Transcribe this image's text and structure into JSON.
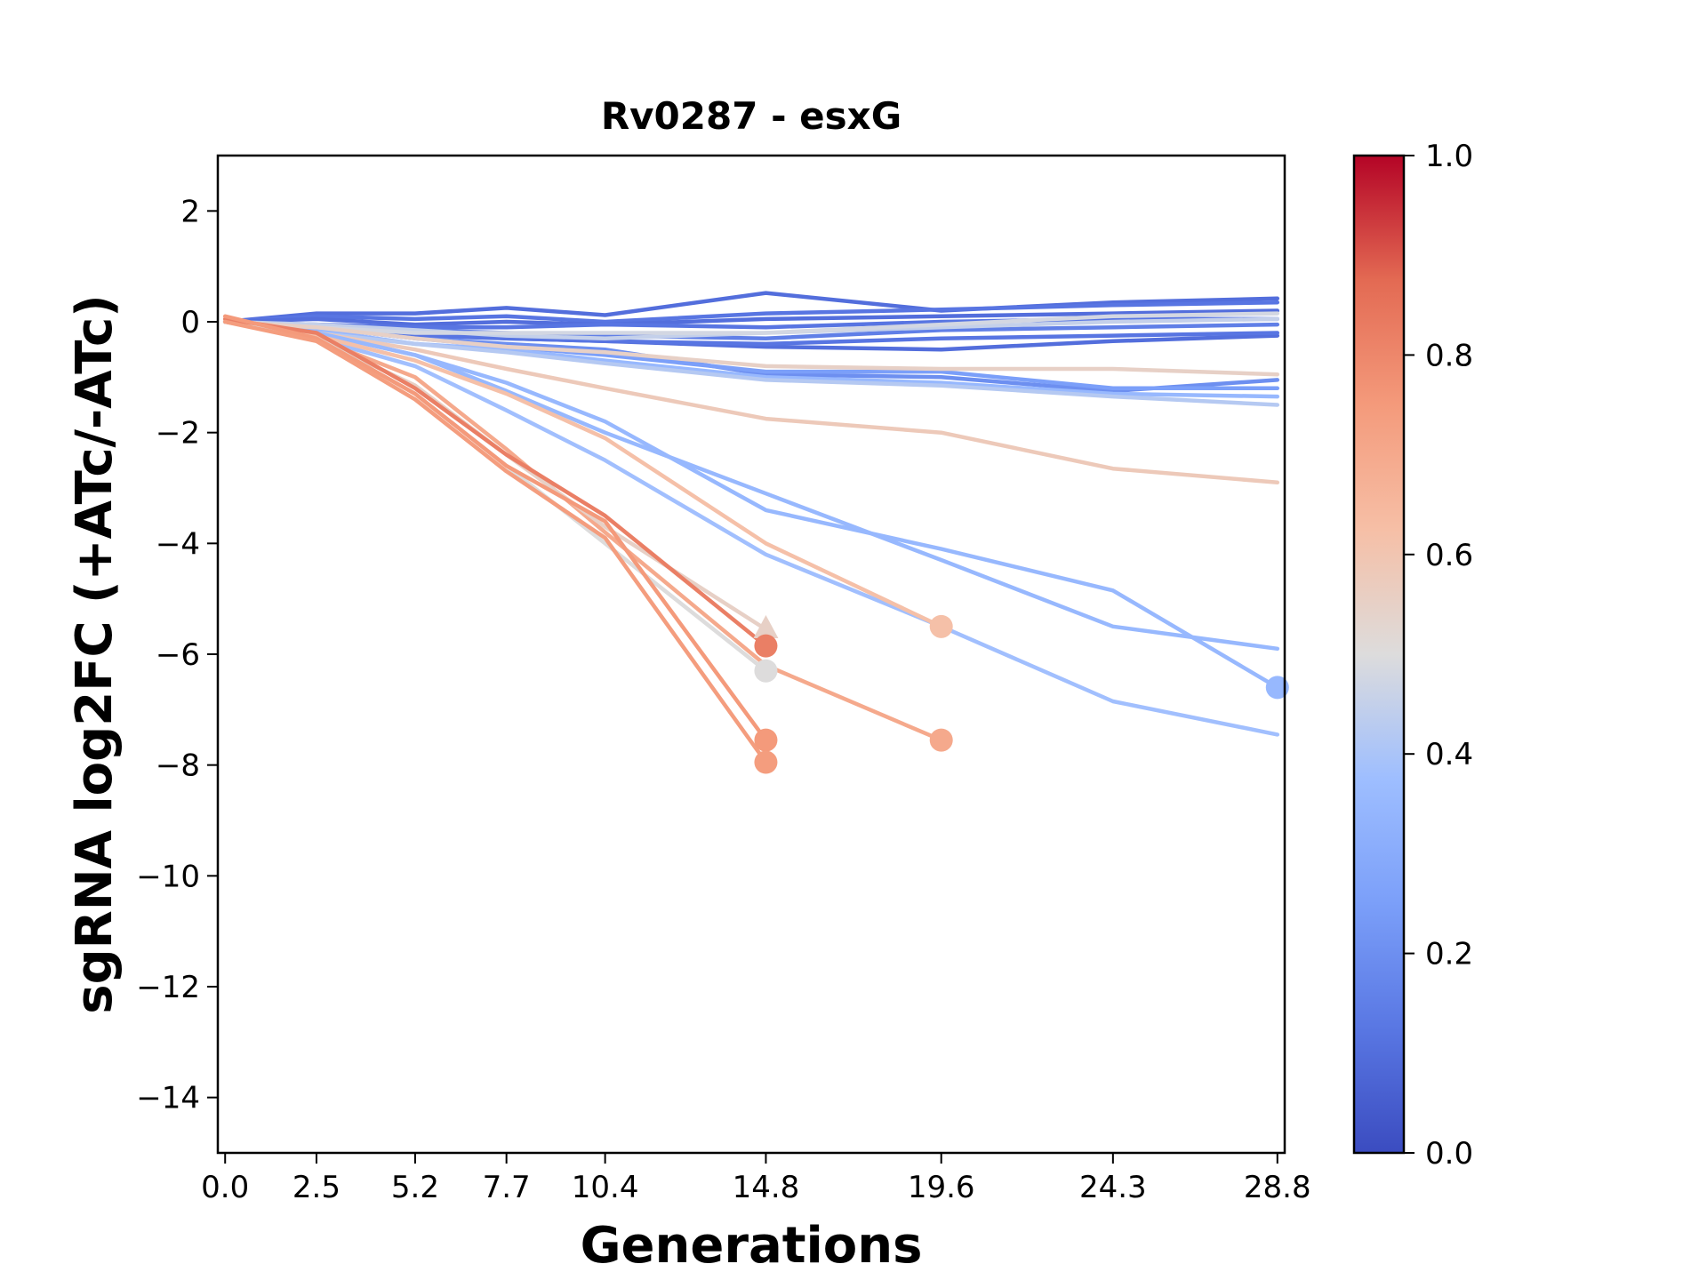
{
  "chart_data": {
    "type": "line",
    "title": "Rv0287 - esxG",
    "xlabel": "Generations",
    "ylabel": "sgRNA log2FC (+ATc/-ATc)",
    "xlim": [
      -0.2,
      29.0
    ],
    "ylim": [
      -15,
      3
    ],
    "x_ticks": [
      "0.0",
      "2.5",
      "5.2",
      "7.7",
      "10.4",
      "14.8",
      "19.6",
      "24.3",
      "28.8"
    ],
    "y_ticks": [
      "2",
      "0",
      "−2",
      "−4",
      "−6",
      "−8",
      "−10",
      "−12",
      "−14"
    ],
    "colorbar": {
      "colormap": "coolwarm",
      "range": [
        0.0,
        1.0
      ],
      "ticks": [
        "0.0",
        "0.2",
        "0.4",
        "0.6",
        "0.8",
        "1.0"
      ]
    },
    "series": [
      {
        "color_value": 0.1,
        "x": [
          0,
          2.5,
          5.2,
          7.7,
          10.4,
          14.8,
          19.6,
          24.3,
          28.8
        ],
        "y": [
          0,
          0.15,
          0.15,
          0.25,
          0.12,
          0.52,
          0.2,
          0.35,
          0.42
        ]
      },
      {
        "color_value": 0.12,
        "x": [
          0,
          2.5,
          5.2,
          7.7,
          10.4,
          14.8,
          19.6,
          24.3,
          28.8
        ],
        "y": [
          0,
          0.1,
          0.05,
          0.1,
          0.0,
          0.15,
          0.22,
          0.3,
          0.35
        ]
      },
      {
        "color_value": 0.1,
        "x": [
          0,
          2.5,
          5.2,
          7.7,
          10.4,
          14.8,
          19.6,
          24.3,
          28.8
        ],
        "y": [
          0,
          0.05,
          -0.05,
          0.0,
          -0.05,
          0.05,
          0.1,
          0.15,
          0.2
        ]
      },
      {
        "color_value": 0.12,
        "x": [
          0,
          2.5,
          5.2,
          7.7,
          10.4,
          14.8,
          19.6,
          24.3,
          28.8
        ],
        "y": [
          0,
          -0.05,
          -0.1,
          -0.1,
          -0.05,
          -0.1,
          0.0,
          0.05,
          0.05
        ]
      },
      {
        "color_value": 0.15,
        "x": [
          0,
          2.5,
          5.2,
          7.7,
          10.4,
          14.8,
          19.6,
          24.3,
          28.8
        ],
        "y": [
          0,
          -0.1,
          -0.15,
          -0.2,
          -0.25,
          -0.3,
          -0.15,
          -0.1,
          -0.05
        ]
      },
      {
        "color_value": 0.1,
        "x": [
          0,
          2.5,
          5.2,
          7.7,
          10.4,
          14.8,
          19.6,
          24.3,
          28.8
        ],
        "y": [
          0,
          -0.15,
          -0.2,
          -0.3,
          -0.35,
          -0.45,
          -0.5,
          -0.35,
          -0.25
        ]
      },
      {
        "color_value": 0.12,
        "x": [
          0,
          2.5,
          5.2,
          7.7,
          10.4,
          14.8,
          19.6,
          24.3,
          28.8
        ],
        "y": [
          0,
          -0.1,
          -0.25,
          -0.3,
          -0.35,
          -0.4,
          -0.3,
          -0.25,
          -0.2
        ]
      },
      {
        "color_value": 0.2,
        "x": [
          0,
          2.5,
          5.2,
          7.7,
          10.4,
          14.8,
          19.6,
          24.3,
          28.8
        ],
        "y": [
          0,
          -0.1,
          -0.3,
          -0.4,
          -0.5,
          -0.95,
          -1.0,
          -1.25,
          -1.05
        ]
      },
      {
        "color_value": 0.25,
        "x": [
          0,
          2.5,
          5.2,
          7.7,
          10.4,
          14.8,
          19.6,
          24.3,
          28.8
        ],
        "y": [
          0,
          -0.1,
          -0.3,
          -0.45,
          -0.6,
          -0.9,
          -0.9,
          -1.2,
          -1.2
        ]
      },
      {
        "color_value": 0.35,
        "x": [
          0,
          2.5,
          5.2,
          7.7,
          10.4,
          14.8,
          19.6,
          24.3,
          28.8
        ],
        "y": [
          0,
          -0.15,
          -0.4,
          -0.5,
          -0.7,
          -1.0,
          -1.1,
          -1.3,
          -1.35
        ]
      },
      {
        "color_value": 0.42,
        "x": [
          0,
          2.5,
          5.2,
          7.7,
          10.4,
          14.8,
          19.6,
          24.3,
          28.8
        ],
        "y": [
          0,
          -0.2,
          -0.4,
          -0.55,
          -0.75,
          -1.05,
          -1.15,
          -1.35,
          -1.5
        ]
      },
      {
        "color_value": 0.45,
        "x": [
          0,
          2.5,
          5.2,
          7.7,
          10.4,
          14.8,
          19.6,
          24.3,
          28.8
        ],
        "y": [
          0,
          -0.05,
          -0.15,
          -0.25,
          -0.3,
          -0.2,
          -0.1,
          0.0,
          0.05
        ]
      },
      {
        "color_value": 0.48,
        "x": [
          0,
          2.5,
          5.2,
          7.7,
          10.4,
          14.8,
          19.6,
          24.3,
          28.8
        ],
        "y": [
          0,
          -0.1,
          -0.2,
          -0.2,
          -0.2,
          -0.2,
          -0.05,
          0.1,
          0.15
        ]
      },
      {
        "color_value": 0.55,
        "x": [
          0,
          2.5,
          5.2,
          7.7,
          10.4,
          14.8,
          19.6,
          24.3,
          28.8
        ],
        "y": [
          0,
          -0.1,
          -0.3,
          -0.45,
          -0.55,
          -0.8,
          -0.85,
          -0.85,
          -0.95
        ]
      },
      {
        "color_value": 0.58,
        "x": [
          0,
          2.5,
          5.2,
          7.7,
          10.4,
          14.8,
          19.6,
          24.3,
          28.8
        ],
        "y": [
          0,
          -0.2,
          -0.5,
          -0.85,
          -1.2,
          -1.75,
          -2.0,
          -2.65,
          -2.9
        ]
      },
      {
        "color_value": 0.35,
        "x": [
          0,
          2.5,
          5.2,
          7.7,
          10.4,
          14.8,
          19.6,
          24.3,
          28.8
        ],
        "y": [
          0,
          -0.2,
          -0.6,
          -1.1,
          -1.8,
          -3.4,
          -4.1,
          -4.85,
          -6.6
        ],
        "end_marker": "circle"
      },
      {
        "color_value": 0.35,
        "x": [
          0,
          2.5,
          5.2,
          7.7,
          10.4,
          14.8,
          19.6,
          24.3,
          28.8
        ],
        "y": [
          0,
          -0.2,
          -0.6,
          -1.25,
          -2.0,
          -3.1,
          -4.3,
          -5.5,
          -5.9
        ]
      },
      {
        "color_value": 0.38,
        "x": [
          0,
          2.5,
          5.2,
          7.7,
          10.4,
          14.8,
          19.6,
          24.3,
          28.8
        ],
        "y": [
          0,
          -0.3,
          -0.8,
          -1.6,
          -2.5,
          -4.2,
          -5.5,
          -6.85,
          -7.45
        ]
      },
      {
        "color_value": 0.62,
        "x": [
          0,
          2.5,
          5.2,
          7.7,
          10.4,
          14.8,
          19.6
        ],
        "y": [
          0,
          -0.25,
          -0.7,
          -1.3,
          -2.1,
          -4.0,
          -5.5
        ],
        "end_marker": "circle"
      },
      {
        "color_value": 0.7,
        "x": [
          0,
          2.5,
          5.2,
          7.7,
          10.4,
          14.8,
          19.6
        ],
        "y": [
          0,
          -0.3,
          -1.0,
          -2.3,
          -3.8,
          -6.2,
          -7.55
        ],
        "end_marker": "circle"
      },
      {
        "color_value": 0.55,
        "x": [
          0,
          2.5,
          5.2,
          7.7,
          10.4,
          14.8
        ],
        "y": [
          0,
          -0.3,
          -1.15,
          -2.4,
          -3.7,
          -5.55
        ],
        "end_marker": "triangle"
      },
      {
        "color_value": 0.5,
        "x": [
          0,
          2.5,
          5.2,
          7.7,
          10.4,
          14.8
        ],
        "y": [
          0,
          -0.3,
          -1.3,
          -2.6,
          -4.0,
          -6.3
        ],
        "end_marker": "circle"
      },
      {
        "color_value": 0.82,
        "x": [
          0,
          2.5,
          5.2,
          7.7,
          10.4,
          14.8
        ],
        "y": [
          0.05,
          -0.2,
          -1.2,
          -2.4,
          -3.5,
          -5.85
        ],
        "end_marker": "circle"
      },
      {
        "color_value": 0.75,
        "x": [
          0,
          2.5,
          5.2,
          7.7,
          10.4,
          14.8
        ],
        "y": [
          0.1,
          -0.3,
          -1.3,
          -2.6,
          -3.6,
          -7.55
        ],
        "end_marker": "circle"
      },
      {
        "color_value": 0.74,
        "x": [
          0,
          2.5,
          5.2,
          7.7,
          10.4,
          14.8
        ],
        "y": [
          0.0,
          -0.35,
          -1.4,
          -2.7,
          -3.9,
          -7.95
        ],
        "end_marker": "circle"
      }
    ]
  }
}
